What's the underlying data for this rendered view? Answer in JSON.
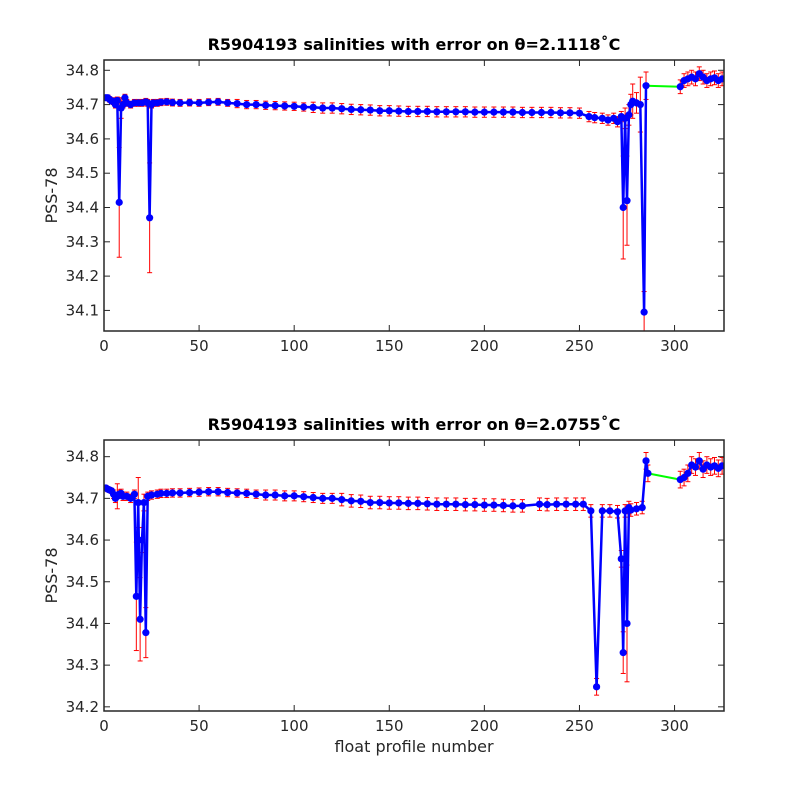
{
  "figure": {
    "xlabel": "float profile number",
    "colors": {
      "error_bar": "#ff0000",
      "line": "#0000ff",
      "marker": "#0000ff",
      "gap_line": "#00ff00",
      "axes": "#262626"
    }
  },
  "chart_data": [
    {
      "type": "line",
      "title": "R5904193 salinities with error on θ=2.1118˚C",
      "xlabel": "",
      "ylabel": "PSS-78",
      "xlim": [
        0,
        326
      ],
      "ylim": [
        34.04,
        34.83
      ],
      "xticks": [
        0,
        50,
        100,
        150,
        200,
        250,
        300
      ],
      "yticks": [
        34.1,
        34.2,
        34.3,
        34.4,
        34.5,
        34.6,
        34.7,
        34.8
      ],
      "grid": false,
      "series": [
        {
          "x": [
            1,
            2,
            3,
            4,
            5,
            6,
            7,
            8,
            9,
            10,
            11,
            12,
            14,
            16,
            18,
            20,
            22,
            23,
            24,
            25,
            26,
            28,
            30,
            33,
            36,
            40,
            45,
            50,
            55,
            60,
            65,
            70,
            75,
            80,
            85,
            90,
            95,
            100,
            105,
            110,
            115,
            120,
            125,
            130,
            135,
            140,
            145,
            150,
            155,
            160,
            165,
            170,
            175,
            180,
            185,
            190,
            195,
            200,
            205,
            210,
            215,
            220,
            225,
            230,
            235,
            240,
            245,
            250,
            255,
            258,
            262,
            265,
            268,
            270,
            272,
            273,
            274,
            275,
            276,
            277,
            278,
            280,
            282,
            284,
            285,
            303,
            305,
            307,
            309,
            311,
            313,
            315,
            317,
            319,
            321,
            323,
            325
          ],
          "y": [
            34.72,
            34.72,
            34.715,
            34.71,
            34.71,
            34.7,
            34.712,
            34.415,
            34.69,
            34.7,
            34.72,
            34.705,
            34.7,
            34.705,
            34.705,
            34.705,
            34.708,
            34.705,
            34.37,
            34.7,
            34.705,
            34.705,
            34.707,
            34.708,
            34.706,
            34.705,
            34.706,
            34.705,
            34.707,
            34.708,
            34.705,
            34.703,
            34.7,
            34.7,
            34.698,
            34.697,
            34.696,
            34.695,
            34.693,
            34.692,
            34.69,
            34.69,
            34.688,
            34.686,
            34.685,
            34.684,
            34.682,
            34.682,
            34.681,
            34.68,
            34.68,
            34.68,
            34.679,
            34.679,
            34.679,
            34.679,
            34.678,
            34.678,
            34.678,
            34.678,
            34.678,
            34.677,
            34.677,
            34.677,
            34.677,
            34.676,
            34.676,
            34.675,
            34.665,
            34.662,
            34.66,
            34.655,
            34.66,
            34.65,
            34.665,
            34.4,
            34.66,
            34.42,
            34.67,
            34.7,
            34.71,
            34.705,
            34.7,
            34.095,
            34.755,
            34.752,
            34.77,
            34.775,
            34.78,
            34.775,
            34.79,
            34.78,
            34.77,
            34.775,
            34.778,
            34.77,
            34.775
          ],
          "error": [
            0.008,
            0.008,
            0.008,
            0.008,
            0.01,
            0.01,
            0.01,
            0.16,
            0.03,
            0.01,
            0.01,
            0.01,
            0.01,
            0.01,
            0.01,
            0.01,
            0.01,
            0.01,
            0.16,
            0.01,
            0.01,
            0.01,
            0.01,
            0.01,
            0.01,
            0.01,
            0.01,
            0.01,
            0.01,
            0.01,
            0.01,
            0.012,
            0.012,
            0.012,
            0.012,
            0.012,
            0.012,
            0.012,
            0.012,
            0.015,
            0.015,
            0.015,
            0.015,
            0.015,
            0.015,
            0.015,
            0.015,
            0.015,
            0.015,
            0.015,
            0.015,
            0.015,
            0.015,
            0.015,
            0.015,
            0.015,
            0.015,
            0.015,
            0.015,
            0.015,
            0.015,
            0.015,
            0.015,
            0.015,
            0.015,
            0.015,
            0.015,
            0.015,
            0.015,
            0.015,
            0.015,
            0.015,
            0.015,
            0.015,
            0.015,
            0.15,
            0.03,
            0.13,
            0.03,
            0.03,
            0.05,
            0.03,
            0.08,
            0.06,
            0.04,
            0.02,
            0.02,
            0.02,
            0.02,
            0.02,
            0.02,
            0.02,
            0.02,
            0.02,
            0.02,
            0.02,
            0.02
          ],
          "gap_segments": [
            [
              285,
              303
            ]
          ]
        }
      ]
    },
    {
      "type": "line",
      "title": "R5904193 salinities with error on θ=2.0755˚C",
      "xlabel": "float profile number",
      "ylabel": "PSS-78",
      "xlim": [
        0,
        326
      ],
      "ylim": [
        34.19,
        34.84
      ],
      "xticks": [
        0,
        50,
        100,
        150,
        200,
        250,
        300
      ],
      "yticks": [
        34.2,
        34.3,
        34.4,
        34.5,
        34.6,
        34.7,
        34.8
      ],
      "grid": false,
      "series": [
        {
          "x": [
            1,
            2,
            3,
            4,
            5,
            6,
            7,
            8,
            9,
            10,
            12,
            14,
            16,
            17,
            18,
            19,
            20,
            21,
            22,
            23,
            25,
            28,
            30,
            33,
            36,
            40,
            45,
            50,
            55,
            60,
            65,
            70,
            75,
            80,
            85,
            90,
            95,
            100,
            105,
            110,
            115,
            120,
            125,
            130,
            135,
            140,
            145,
            150,
            155,
            160,
            165,
            170,
            175,
            180,
            185,
            190,
            195,
            200,
            205,
            210,
            215,
            220,
            229,
            233,
            238,
            243,
            248,
            252,
            256,
            259,
            262,
            266,
            270,
            272,
            273,
            274,
            275,
            276,
            277,
            280,
            283,
            285,
            286,
            303,
            305,
            307,
            309,
            311,
            313,
            315,
            317,
            319,
            321,
            323,
            325
          ],
          "y": [
            34.725,
            34.722,
            34.72,
            34.718,
            34.71,
            34.7,
            34.705,
            34.71,
            34.712,
            34.705,
            34.705,
            34.7,
            34.71,
            34.465,
            34.69,
            34.41,
            34.6,
            34.69,
            34.378,
            34.705,
            34.708,
            34.71,
            34.712,
            34.712,
            34.713,
            34.713,
            34.714,
            34.715,
            34.716,
            34.716,
            34.714,
            34.713,
            34.712,
            34.71,
            34.708,
            34.708,
            34.706,
            34.706,
            34.704,
            34.702,
            34.7,
            34.7,
            34.697,
            34.694,
            34.693,
            34.69,
            34.69,
            34.689,
            34.689,
            34.688,
            34.688,
            34.687,
            34.686,
            34.686,
            34.686,
            34.685,
            34.685,
            34.684,
            34.684,
            34.683,
            34.682,
            34.682,
            34.686,
            34.685,
            34.686,
            34.686,
            34.686,
            34.686,
            34.67,
            34.248,
            34.67,
            34.67,
            34.668,
            34.555,
            34.33,
            34.67,
            34.4,
            34.678,
            34.672,
            34.675,
            34.678,
            34.79,
            34.76,
            34.745,
            34.75,
            34.76,
            34.78,
            34.775,
            34.79,
            34.77,
            34.78,
            34.775,
            34.778,
            34.772,
            34.778
          ],
          "error": [
            0.006,
            0.006,
            0.006,
            0.006,
            0.01,
            0.01,
            0.03,
            0.01,
            0.01,
            0.01,
            0.01,
            0.01,
            0.01,
            0.13,
            0.06,
            0.1,
            0.03,
            0.02,
            0.06,
            0.01,
            0.01,
            0.01,
            0.01,
            0.01,
            0.01,
            0.01,
            0.01,
            0.01,
            0.01,
            0.01,
            0.01,
            0.01,
            0.01,
            0.01,
            0.012,
            0.012,
            0.012,
            0.012,
            0.012,
            0.012,
            0.012,
            0.012,
            0.015,
            0.015,
            0.015,
            0.015,
            0.015,
            0.015,
            0.015,
            0.015,
            0.015,
            0.015,
            0.015,
            0.015,
            0.015,
            0.015,
            0.015,
            0.015,
            0.015,
            0.015,
            0.015,
            0.015,
            0.015,
            0.015,
            0.015,
            0.015,
            0.015,
            0.015,
            0.015,
            0.02,
            0.015,
            0.015,
            0.015,
            0.02,
            0.05,
            0.015,
            0.14,
            0.015,
            0.015,
            0.015,
            0.015,
            0.02,
            0.02,
            0.02,
            0.02,
            0.02,
            0.02,
            0.02,
            0.02,
            0.02,
            0.02,
            0.02,
            0.02,
            0.02,
            0.02
          ],
          "gap_segments": [
            [
              225,
              229
            ],
            [
              277,
              285
            ],
            [
              286,
              303
            ]
          ]
        }
      ]
    }
  ]
}
